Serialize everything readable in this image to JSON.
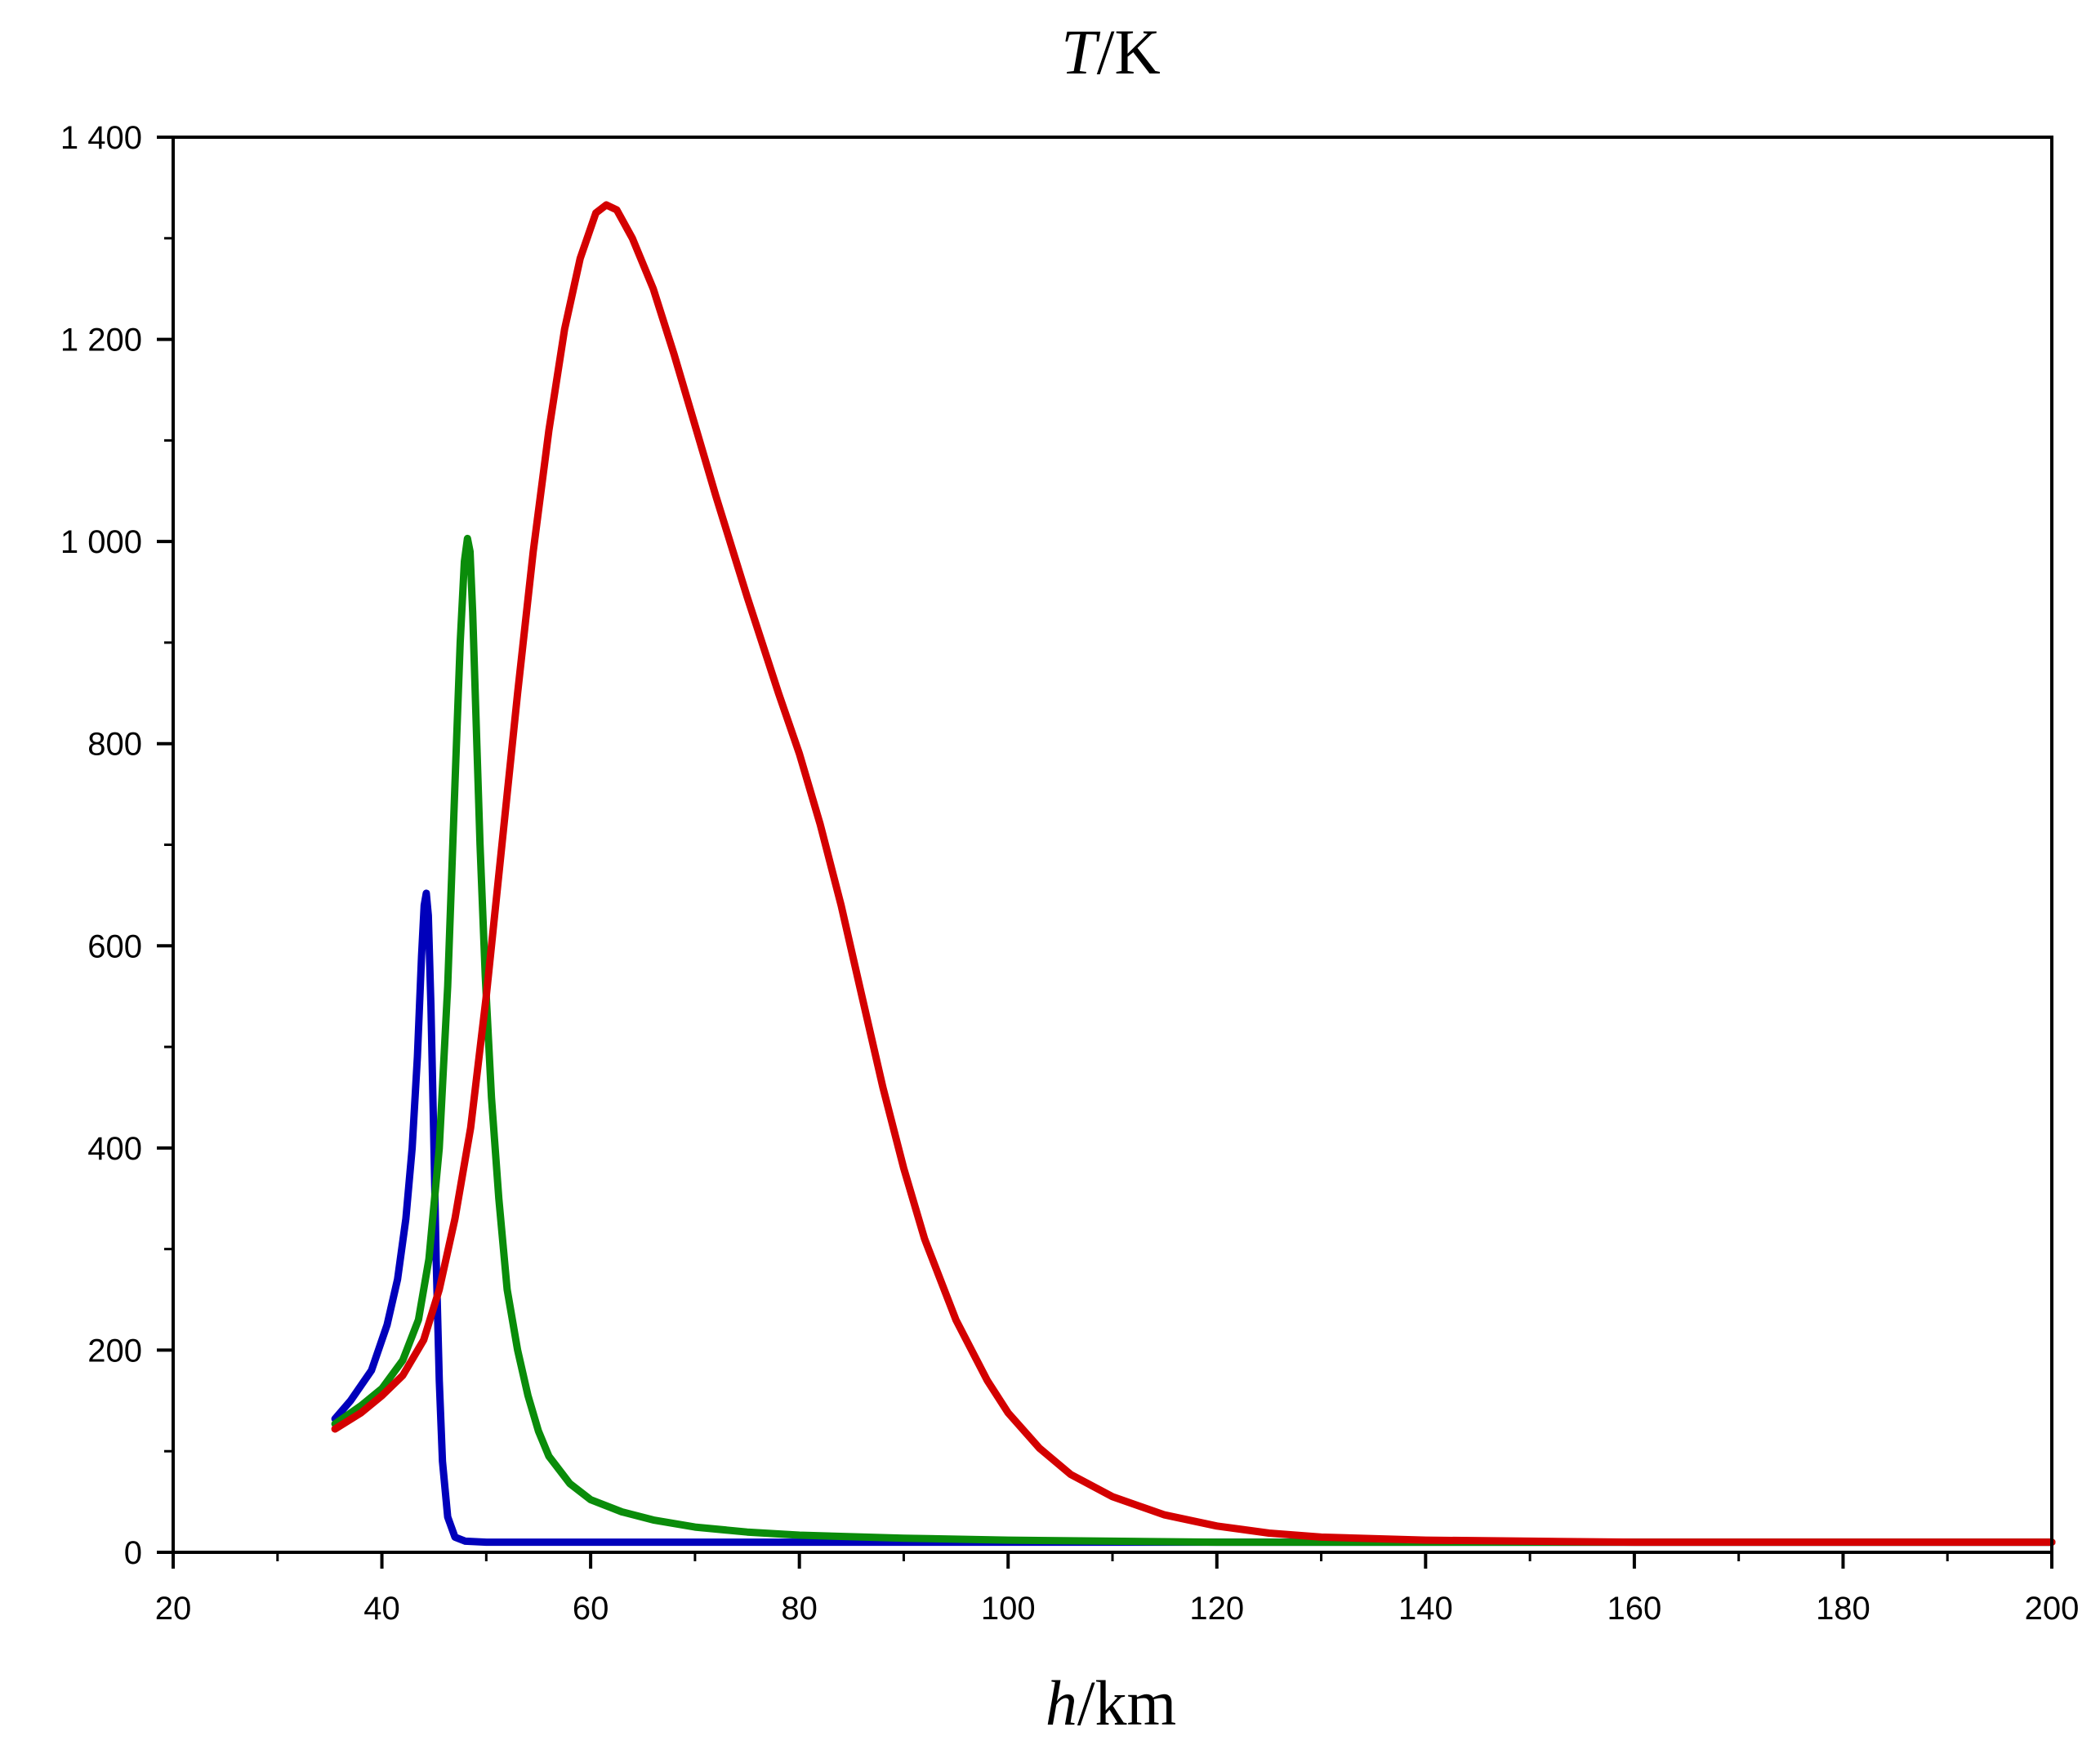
{
  "chart_data": {
    "type": "line",
    "title_var": "T",
    "title_unit": "/K",
    "xlabel_var": "h",
    "xlabel_unit": "/km",
    "xlim": [
      20,
      200
    ],
    "ylim": [
      0,
      1400
    ],
    "x_major_ticks": [
      20,
      40,
      60,
      80,
      100,
      120,
      140,
      160,
      180,
      200
    ],
    "x_tick_labels": [
      "20",
      "40",
      "60",
      "80",
      "100",
      "120",
      "140",
      "160",
      "180",
      "200"
    ],
    "y_major_ticks": [
      0,
      200,
      400,
      600,
      800,
      1000,
      1200,
      1400
    ],
    "y_tick_labels": [
      "0",
      "200",
      "400",
      "600",
      "800",
      "1 000",
      "1 200",
      "1 400"
    ],
    "series": [
      {
        "name": "blue",
        "color": "#0000bb",
        "x": [
          35.5,
          37,
          39,
          40.5,
          41.5,
          42.3,
          42.9,
          43.4,
          43.8,
          44.05,
          44.25,
          44.45,
          44.7,
          44.95,
          45.2,
          45.5,
          45.8,
          46.3,
          47,
          48,
          50,
          60,
          80,
          100,
          120,
          140,
          160,
          180,
          200
        ],
        "y": [
          132,
          150,
          180,
          225,
          270,
          330,
          400,
          490,
          590,
          640,
          652,
          630,
          540,
          420,
          290,
          170,
          90,
          35,
          15,
          11,
          10,
          10,
          10,
          10,
          10,
          10,
          10,
          10,
          10
        ]
      },
      {
        "name": "green",
        "color": "#0a8c0a",
        "x": [
          35.5,
          38,
          40,
          42,
          43.5,
          44.5,
          45.5,
          46.3,
          47,
          47.5,
          47.9,
          48.2,
          48.45,
          48.7,
          49,
          49.4,
          49.9,
          50.5,
          51.2,
          52,
          53,
          54,
          55,
          56,
          58,
          60,
          63,
          66,
          70,
          75,
          80,
          90,
          100,
          110,
          120,
          140,
          160,
          180,
          200
        ],
        "y": [
          127,
          145,
          162,
          190,
          230,
          290,
          400,
          560,
          760,
          900,
          980,
          1003,
          990,
          930,
          830,
          700,
          570,
          450,
          350,
          260,
          200,
          155,
          120,
          95,
          68,
          52,
          40,
          32,
          25,
          20,
          17,
          14,
          12,
          11,
          10,
          10,
          10,
          10,
          10
        ]
      },
      {
        "name": "red",
        "color": "#d40000",
        "x": [
          35.5,
          38,
          40,
          42,
          44,
          45.5,
          47,
          48.5,
          50,
          51.5,
          53,
          54.5,
          56,
          57.5,
          59,
          60.5,
          61.5,
          62.5,
          64,
          66,
          68,
          70,
          72,
          75,
          78,
          80,
          82,
          84,
          86,
          88,
          90,
          92,
          95,
          98,
          100,
          103,
          106,
          110,
          115,
          120,
          125,
          130,
          140,
          150,
          160,
          180,
          200
        ],
        "y": [
          122,
          138,
          155,
          175,
          210,
          260,
          330,
          420,
          550,
          700,
          850,
          990,
          1110,
          1210,
          1280,
          1325,
          1333,
          1328,
          1300,
          1250,
          1185,
          1115,
          1045,
          945,
          850,
          790,
          720,
          640,
          550,
          460,
          380,
          310,
          230,
          170,
          138,
          103,
          77,
          55,
          37,
          26,
          19,
          15,
          12,
          11,
          10,
          10,
          10
        ]
      }
    ]
  }
}
